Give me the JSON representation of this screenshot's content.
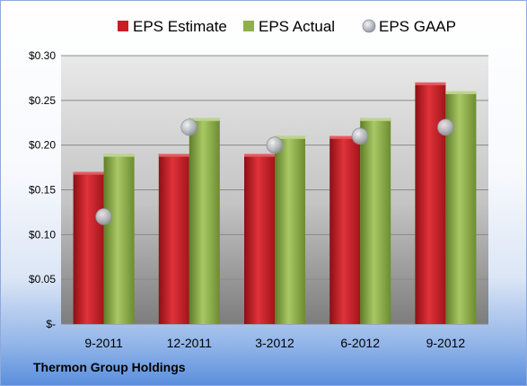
{
  "chart_data": {
    "type": "bar",
    "categories": [
      "9-2011",
      "12-2011",
      "3-2012",
      "6-2012",
      "9-2012"
    ],
    "series": [
      {
        "name": "EPS Estimate",
        "values": [
          0.17,
          0.19,
          0.19,
          0.21,
          0.27
        ],
        "color": "#c81e24",
        "kind": "bar"
      },
      {
        "name": "EPS Actual",
        "values": [
          0.19,
          0.23,
          0.21,
          0.23,
          0.26
        ],
        "color": "#8fb04a",
        "kind": "bar"
      },
      {
        "name": "EPS GAAP",
        "values": [
          0.12,
          0.22,
          0.2,
          0.21,
          0.22
        ],
        "color": "#b8bcc4",
        "kind": "marker"
      }
    ],
    "yticks": [
      0,
      0.05,
      0.1,
      0.15,
      0.2,
      0.25,
      0.3
    ],
    "ytick_labels": [
      "$-",
      "$0.05",
      "$0.10",
      "$0.15",
      "$0.20",
      "$0.25",
      "$0.30"
    ],
    "ylim": [
      0,
      0.3
    ],
    "legend_position": "top",
    "grid": true
  },
  "footer": {
    "company": "Thermon Group Holdings"
  }
}
